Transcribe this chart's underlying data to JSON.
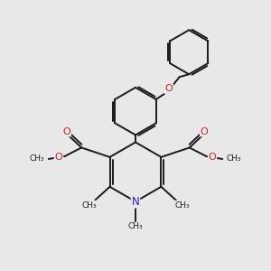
{
  "background_color": "#e8e8e8",
  "bond_color": "#1a1a1a",
  "bond_width": 1.4,
  "N_color": "#2222cc",
  "O_color": "#cc2222",
  "font_size_atom": 8.0,
  "fig_size": [
    3.0,
    3.0
  ],
  "dpi": 100,
  "xlim": [
    0,
    10
  ],
  "ylim": [
    0,
    10
  ]
}
